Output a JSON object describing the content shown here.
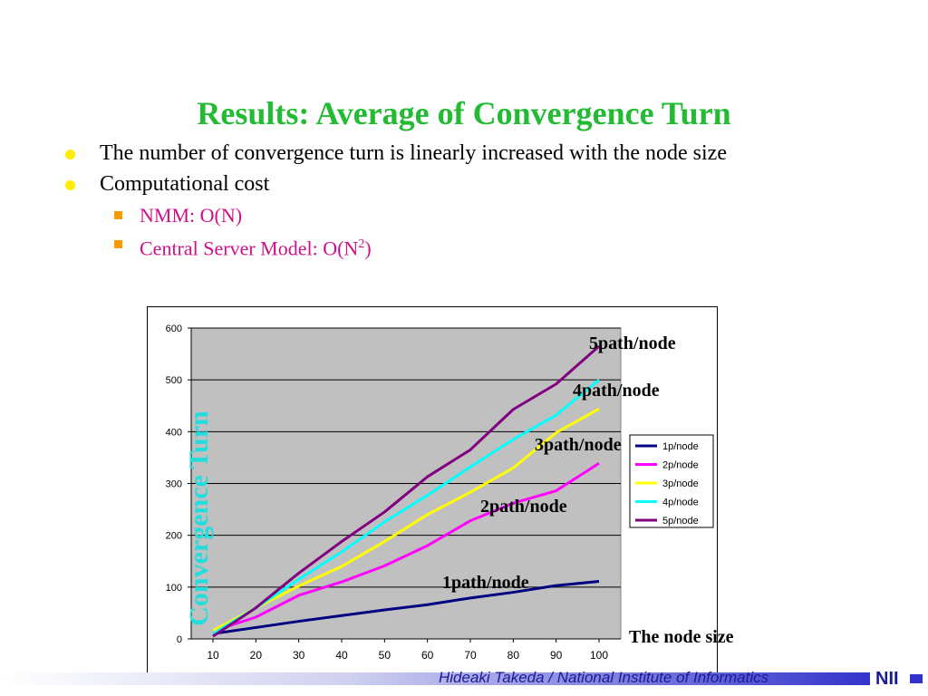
{
  "slide": {
    "title": "Results: Average of Convergence Turn",
    "bullets": [
      {
        "text": "The number of convergence turn is linearly increased with the node size"
      },
      {
        "text": "Computational cost",
        "sub": [
          {
            "text": "NMM: O(N)"
          },
          {
            "text": "Central Server Model: O(N",
            "sup": "2",
            "tail": ")"
          }
        ]
      }
    ],
    "footer": {
      "author": "Hideaki Takeda / National Institute of Informatics",
      "logo": "NII"
    }
  },
  "chart_data": {
    "type": "line",
    "ylabel": "Convergence Turn",
    "xlabel": "The node size",
    "x": [
      10,
      20,
      30,
      40,
      50,
      60,
      70,
      80,
      90,
      100
    ],
    "ylim": [
      0,
      600
    ],
    "yticks": [
      0,
      100,
      200,
      300,
      400,
      500,
      600
    ],
    "grid": true,
    "legend_position": "right",
    "series": [
      {
        "name": "1p/node",
        "color": "#000080",
        "values": [
          10,
          22,
          34,
          45,
          56,
          66,
          79,
          90,
          103,
          111
        ]
      },
      {
        "name": "2p/node",
        "color": "#ff00ff",
        "values": [
          15,
          42,
          84,
          110,
          141,
          180,
          228,
          262,
          286,
          339
        ]
      },
      {
        "name": "3p/node",
        "color": "#ffff00",
        "values": [
          16,
          60,
          102,
          140,
          188,
          240,
          283,
          330,
          398,
          444
        ]
      },
      {
        "name": "4p/node",
        "color": "#00ffff",
        "values": [
          10,
          60,
          115,
          168,
          226,
          277,
          332,
          385,
          432,
          500
        ]
      },
      {
        "name": "5p/node",
        "color": "#800080",
        "values": [
          5,
          60,
          127,
          188,
          245,
          313,
          365,
          443,
          492,
          565
        ]
      }
    ],
    "annotations": [
      "5path/node",
      "4path/node",
      "3path/node",
      "2path/node",
      "1path/node"
    ]
  }
}
